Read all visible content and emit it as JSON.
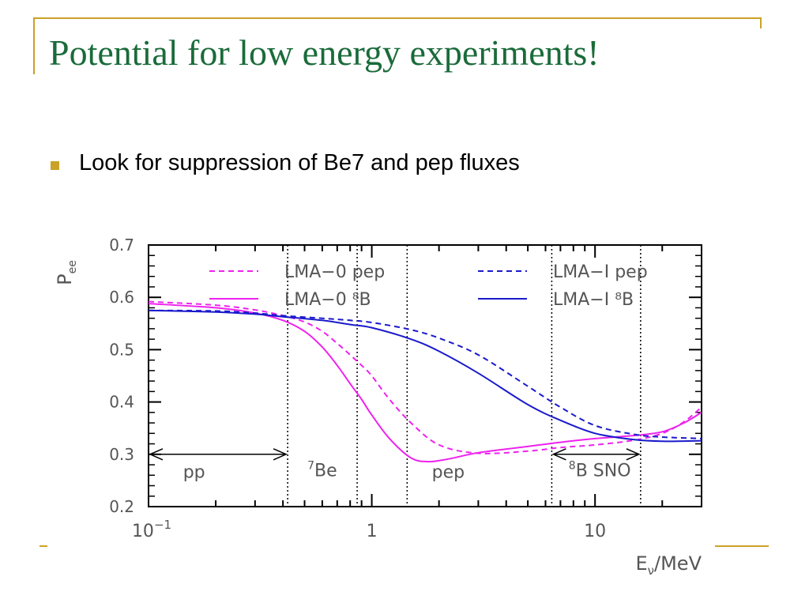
{
  "slide": {
    "title": "Potential for low energy experiments!",
    "bullet": "Look for suppression of Be7 and pep fluxes"
  },
  "colors": {
    "accent": "#c9a227",
    "title": "#1a6b3a",
    "magenta": "#ee22ee",
    "blue": "#1a1acc"
  },
  "chart_data": {
    "type": "line",
    "x_scale": "log",
    "xlim": [
      0.1,
      30
    ],
    "ylim": [
      0.2,
      0.7
    ],
    "y_ticks": [
      0.2,
      0.3,
      0.4,
      0.5,
      0.6,
      0.7
    ],
    "y_tick_labels": [
      "0.2",
      "0.3",
      "0.4",
      "0.5",
      "0.6",
      "0.7"
    ],
    "x_ticks": [
      0.1,
      1,
      10
    ],
    "x_tick_labels": [
      {
        "base": "10",
        "sup": "−1"
      },
      {
        "base": "1",
        "sup": ""
      },
      {
        "base": "10",
        "sup": ""
      }
    ],
    "ylabel": {
      "base": "P",
      "sub": "ee"
    },
    "xlabel": {
      "pre": "E",
      "sub": "ν",
      "post": "/MeV"
    },
    "series": [
      {
        "name": "LMA−0 pep",
        "color": "#ee22ee",
        "dash": true,
        "x": [
          0.1,
          0.2,
          0.3,
          0.4,
          0.5,
          0.6,
          0.7,
          0.8,
          0.9,
          1.0,
          1.2,
          1.5,
          2,
          3,
          5,
          7,
          10,
          15,
          20,
          25,
          30
        ],
        "y": [
          0.592,
          0.585,
          0.576,
          0.565,
          0.553,
          0.535,
          0.512,
          0.49,
          0.47,
          0.45,
          0.405,
          0.36,
          0.318,
          0.302,
          0.306,
          0.313,
          0.318,
          0.327,
          0.34,
          0.362,
          0.39
        ]
      },
      {
        "name": "LMA−0 ⁸B",
        "color": "#ee22ee",
        "dash": false,
        "x": [
          0.1,
          0.2,
          0.3,
          0.4,
          0.5,
          0.6,
          0.7,
          0.8,
          0.9,
          1.0,
          1.2,
          1.5,
          1.8,
          2.2,
          3,
          5,
          7,
          10,
          15,
          20,
          25,
          30
        ],
        "y": [
          0.588,
          0.58,
          0.57,
          0.556,
          0.535,
          0.505,
          0.47,
          0.435,
          0.405,
          0.375,
          0.33,
          0.293,
          0.286,
          0.291,
          0.303,
          0.315,
          0.323,
          0.33,
          0.336,
          0.343,
          0.36,
          0.38
        ]
      },
      {
        "name": "LMA−I pep",
        "color": "#1a1acc",
        "dash": true,
        "x": [
          0.1,
          0.2,
          0.3,
          0.4,
          0.6,
          0.8,
          1,
          1.5,
          2,
          3,
          5,
          7,
          10,
          15,
          20,
          30
        ],
        "y": [
          0.575,
          0.574,
          0.57,
          0.565,
          0.56,
          0.556,
          0.552,
          0.538,
          0.522,
          0.49,
          0.43,
          0.39,
          0.355,
          0.338,
          0.333,
          0.33
        ]
      },
      {
        "name": "LMA−I ⁸B",
        "color": "#1a1acc",
        "dash": false,
        "x": [
          0.1,
          0.2,
          0.3,
          0.4,
          0.6,
          0.8,
          1,
          1.5,
          2,
          3,
          5,
          7,
          10,
          15,
          20,
          30
        ],
        "y": [
          0.575,
          0.572,
          0.568,
          0.563,
          0.556,
          0.548,
          0.542,
          0.52,
          0.497,
          0.455,
          0.395,
          0.365,
          0.34,
          0.328,
          0.325,
          0.326
        ]
      }
    ],
    "vertical_lines": [
      0.42,
      0.86,
      1.44,
      6.4,
      16
    ],
    "arrows": [
      {
        "from": 0.1,
        "to": 0.42,
        "y": 0.3
      },
      {
        "from": 6.4,
        "to": 16,
        "y": 0.3
      }
    ],
    "region_labels": [
      {
        "sup": "",
        "text": "pp",
        "x": 0.16,
        "y": 0.255
      },
      {
        "sup": "7",
        "text": "Be",
        "x": 0.6,
        "y": 0.258
      },
      {
        "sup": "",
        "text": "pep",
        "x": 2.2,
        "y": 0.255
      },
      {
        "sup": "8",
        "text": "B SNO",
        "x": 10.5,
        "y": 0.258
      }
    ]
  }
}
